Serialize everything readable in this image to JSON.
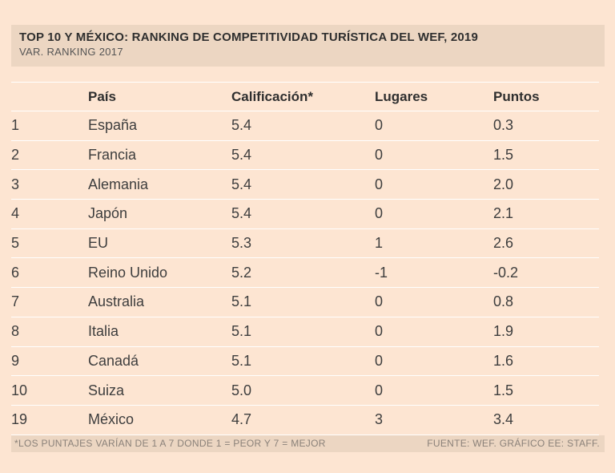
{
  "header": {
    "title": "TOP 10 Y MÉXICO: RANKING DE COMPETITIVIDAD TURÍSTICA DEL WEF, 2019",
    "subtitle": "VAR. RANKING 2017"
  },
  "chart_data": {
    "type": "table",
    "title": "TOP 10 Y MÉXICO: RANKING DE COMPETITIVIDAD TURÍSTICA DEL WEF, 2019",
    "subtitle": "VAR. RANKING 2017",
    "columns": [
      "",
      "País",
      "Calificación*",
      "Lugares",
      "Puntos"
    ],
    "rows": [
      [
        "1",
        "España",
        "5.4",
        "0",
        "0.3"
      ],
      [
        "2",
        "Francia",
        "5.4",
        "0",
        "1.5"
      ],
      [
        "3",
        "Alemania",
        "5.4",
        "0",
        "2.0"
      ],
      [
        "4",
        "Japón",
        "5.4",
        "0",
        "2.1"
      ],
      [
        "5",
        "EU",
        "5.3",
        "1",
        "2.6"
      ],
      [
        "6",
        "Reino Unido",
        "5.2",
        "-1",
        "-0.2"
      ],
      [
        "7",
        "Australia",
        "5.1",
        "0",
        "0.8"
      ],
      [
        "8",
        "Italia",
        "5.1",
        "0",
        "1.9"
      ],
      [
        "9",
        "Canadá",
        "5.1",
        "0",
        "1.6"
      ],
      [
        "10",
        "Suiza",
        "5.0",
        "0",
        "1.5"
      ],
      [
        "19",
        "México",
        "4.7",
        "3",
        "3.4"
      ]
    ]
  },
  "footer": {
    "note": "*LOS PUNTAJES VARÍAN DE 1 A 7 DONDE 1 = PEOR Y 7 = MEJOR",
    "source": "FUENTE: WEF. GRÁFICO EE: STAFF."
  }
}
